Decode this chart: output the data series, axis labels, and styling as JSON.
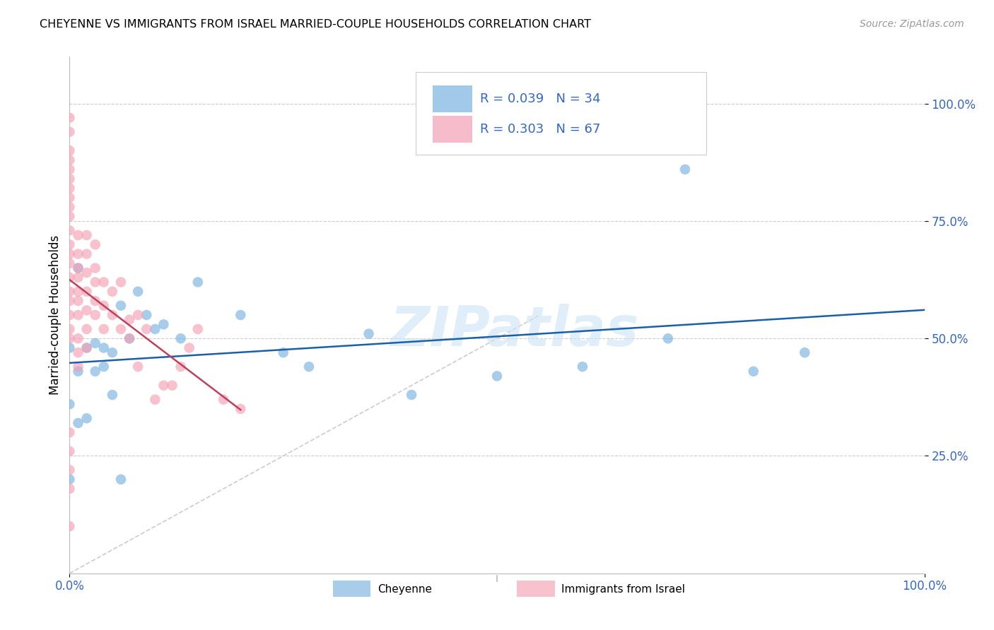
{
  "title": "CHEYENNE VS IMMIGRANTS FROM ISRAEL MARRIED-COUPLE HOUSEHOLDS CORRELATION CHART",
  "source": "Source: ZipAtlas.com",
  "ylabel": "Married-couple Households",
  "blue_label": "Cheyenne",
  "pink_label": "Immigrants from Israel",
  "legend_blue_r": "R = 0.039",
  "legend_blue_n": "N = 34",
  "legend_pink_r": "R = 0.303",
  "legend_pink_n": "N = 67",
  "blue_color": "#7ab3e0",
  "pink_color": "#f5a0b5",
  "blue_line_color": "#1a5fa8",
  "pink_line_color": "#c0405a",
  "diagonal_color": "#cccccc",
  "watermark": "ZIPatlas",
  "text_color": "#3366cc",
  "blue_x": [
    0.0,
    0.0,
    0.01,
    0.01,
    0.02,
    0.03,
    0.04,
    0.05,
    0.06,
    0.07,
    0.08,
    0.09,
    0.1,
    0.11,
    0.13,
    0.15,
    0.2,
    0.25,
    0.28,
    0.35,
    0.4,
    0.5,
    0.6,
    0.7,
    0.72,
    0.8,
    0.86,
    0.01,
    0.02,
    0.03,
    0.04,
    0.05,
    0.06,
    0.0
  ],
  "blue_y": [
    0.48,
    0.36,
    0.65,
    0.43,
    0.33,
    0.49,
    0.44,
    0.47,
    0.57,
    0.5,
    0.6,
    0.55,
    0.52,
    0.53,
    0.5,
    0.62,
    0.55,
    0.47,
    0.44,
    0.51,
    0.38,
    0.42,
    0.44,
    0.5,
    0.86,
    0.43,
    0.47,
    0.32,
    0.48,
    0.43,
    0.48,
    0.38,
    0.2,
    0.2
  ],
  "pink_x": [
    0.0,
    0.0,
    0.0,
    0.0,
    0.0,
    0.0,
    0.0,
    0.0,
    0.0,
    0.0,
    0.0,
    0.0,
    0.0,
    0.0,
    0.0,
    0.0,
    0.0,
    0.0,
    0.0,
    0.0,
    0.01,
    0.01,
    0.01,
    0.01,
    0.01,
    0.01,
    0.01,
    0.01,
    0.01,
    0.02,
    0.02,
    0.02,
    0.02,
    0.02,
    0.02,
    0.02,
    0.03,
    0.03,
    0.03,
    0.03,
    0.03,
    0.04,
    0.04,
    0.04,
    0.05,
    0.05,
    0.06,
    0.06,
    0.07,
    0.07,
    0.08,
    0.08,
    0.09,
    0.1,
    0.11,
    0.12,
    0.13,
    0.14,
    0.15,
    0.18,
    0.2,
    0.0,
    0.0,
    0.0,
    0.0,
    0.0,
    0.01
  ],
  "pink_y": [
    0.97,
    0.94,
    0.9,
    0.88,
    0.86,
    0.84,
    0.82,
    0.8,
    0.78,
    0.76,
    0.73,
    0.7,
    0.68,
    0.66,
    0.63,
    0.6,
    0.58,
    0.55,
    0.52,
    0.5,
    0.72,
    0.68,
    0.65,
    0.63,
    0.6,
    0.58,
    0.55,
    0.5,
    0.47,
    0.72,
    0.68,
    0.64,
    0.6,
    0.56,
    0.52,
    0.48,
    0.7,
    0.65,
    0.62,
    0.58,
    0.55,
    0.62,
    0.57,
    0.52,
    0.6,
    0.55,
    0.62,
    0.52,
    0.54,
    0.5,
    0.55,
    0.44,
    0.52,
    0.37,
    0.4,
    0.4,
    0.44,
    0.48,
    0.52,
    0.37,
    0.35,
    0.18,
    0.22,
    0.26,
    0.3,
    0.1,
    0.44
  ]
}
